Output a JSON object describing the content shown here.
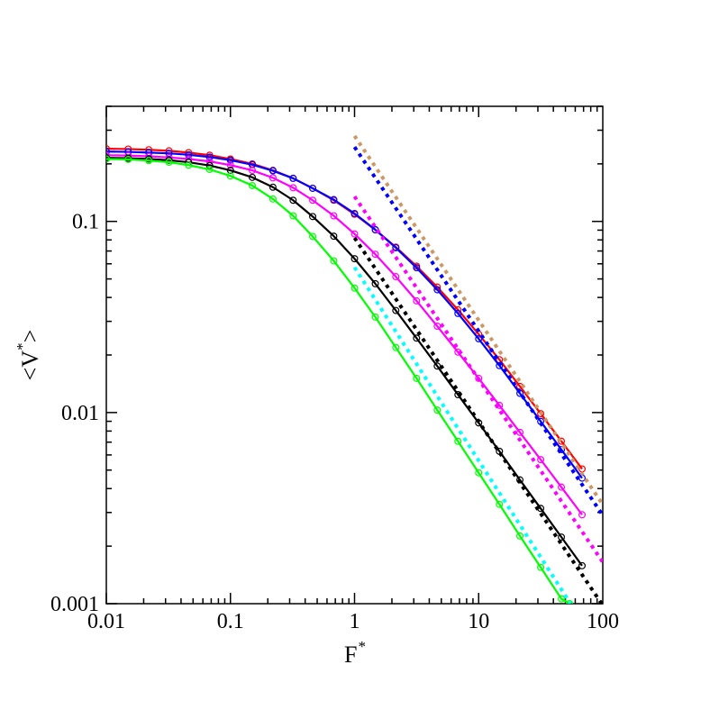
{
  "chart_data": {
    "type": "line",
    "x_scale": "log",
    "y_scale": "log",
    "xlim": [
      0.01,
      100
    ],
    "ylim": [
      0.001,
      0.4
    ],
    "xlabel": {
      "main": "F",
      "sup": "*"
    },
    "ylabel": {
      "left": "<V",
      "sup": "*",
      "right": ">"
    },
    "x_ticks": [
      {
        "value": 0.01,
        "label": "0.01"
      },
      {
        "value": 0.1,
        "label": "0.1"
      },
      {
        "value": 1,
        "label": "1"
      },
      {
        "value": 10,
        "label": "10"
      },
      {
        "value": 100,
        "label": "100"
      }
    ],
    "y_ticks": [
      {
        "value": 0.001,
        "label": "0.001"
      },
      {
        "value": 0.01,
        "label": "0.01"
      },
      {
        "value": 0.1,
        "label": "0.1"
      }
    ],
    "grid": false,
    "legend": "none",
    "series": [
      {
        "color": "#ff0000",
        "style": "solid",
        "markers": true,
        "x": [
          0.01,
          0.015,
          0.022,
          0.032,
          0.046,
          0.068,
          0.1,
          0.15,
          0.22,
          0.32,
          0.46,
          0.68,
          1.0,
          1.47,
          2.15,
          3.16,
          4.64,
          6.81,
          10.0,
          14.7,
          21.5,
          31.6,
          46.4,
          68.1
        ],
        "y": [
          0.24,
          0.239,
          0.237,
          0.234,
          0.229,
          0.222,
          0.212,
          0.2,
          0.185,
          0.168,
          0.149,
          0.129,
          0.109,
          0.0903,
          0.0734,
          0.0583,
          0.0453,
          0.0345,
          0.0257,
          0.0189,
          0.0137,
          0.00987,
          0.00708,
          0.00507
        ]
      },
      {
        "color": "#0000ff",
        "style": "solid",
        "markers": true,
        "x": [
          0.01,
          0.015,
          0.022,
          0.032,
          0.046,
          0.068,
          0.1,
          0.15,
          0.22,
          0.32,
          0.46,
          0.68,
          1.0,
          1.47,
          2.15,
          3.16,
          4.64,
          6.81,
          10.0,
          14.7,
          21.5,
          31.6,
          46.4,
          68.1
        ],
        "y": [
          0.232,
          0.231,
          0.229,
          0.227,
          0.223,
          0.217,
          0.209,
          0.198,
          0.184,
          0.168,
          0.149,
          0.13,
          0.11,
          0.0905,
          0.0728,
          0.0572,
          0.0439,
          0.033,
          0.0243,
          0.0176,
          0.0126,
          0.00899,
          0.0064,
          0.00454
        ]
      },
      {
        "color": "#ff00ff",
        "style": "solid",
        "markers": true,
        "x": [
          0.01,
          0.015,
          0.022,
          0.032,
          0.046,
          0.068,
          0.1,
          0.15,
          0.22,
          0.32,
          0.46,
          0.68,
          1.0,
          1.47,
          2.15,
          3.16,
          4.64,
          6.81,
          10.0,
          14.7,
          21.5,
          31.6,
          46.4,
          68.1
        ],
        "y": [
          0.222,
          0.221,
          0.219,
          0.216,
          0.212,
          0.206,
          0.197,
          0.185,
          0.169,
          0.15,
          0.129,
          0.107,
          0.086,
          0.0673,
          0.0514,
          0.0384,
          0.0283,
          0.0207,
          0.0151,
          0.0109,
          0.00787,
          0.00567,
          0.00407,
          0.00292
        ]
      },
      {
        "color": "#000000",
        "style": "solid",
        "markers": true,
        "x": [
          0.01,
          0.015,
          0.022,
          0.032,
          0.046,
          0.068,
          0.1,
          0.15,
          0.22,
          0.32,
          0.46,
          0.68,
          1.0,
          1.47,
          2.15,
          3.16,
          4.64,
          6.81,
          10.0,
          14.7,
          21.5,
          31.6,
          46.4,
          68.1
        ],
        "y": [
          0.215,
          0.214,
          0.212,
          0.209,
          0.204,
          0.196,
          0.185,
          0.17,
          0.151,
          0.129,
          0.106,
          0.0837,
          0.0638,
          0.0472,
          0.0342,
          0.0245,
          0.0175,
          0.0124,
          0.00883,
          0.00627,
          0.00444,
          0.00315,
          0.00223,
          0.00158
        ]
      },
      {
        "color": "#00ff00",
        "style": "solid",
        "markers": true,
        "x": [
          0.01,
          0.015,
          0.022,
          0.032,
          0.046,
          0.068,
          0.1,
          0.15,
          0.22,
          0.32,
          0.46,
          0.68,
          1.0,
          1.47,
          2.15,
          3.16,
          4.64,
          6.81,
          10.0,
          14.7,
          21.5,
          31.6,
          46.4,
          54.0
        ],
        "y": [
          0.212,
          0.211,
          0.208,
          0.204,
          0.197,
          0.187,
          0.173,
          0.154,
          0.131,
          0.107,
          0.0834,
          0.0622,
          0.0448,
          0.0316,
          0.0219,
          0.0151,
          0.0103,
          0.00707,
          0.00484,
          0.00331,
          0.00226,
          0.00155,
          0.00106,
          0.001
        ]
      },
      {
        "color": "#cc9966",
        "style": "dotted",
        "markers": false,
        "x": [
          1.0,
          100
        ],
        "y": [
          0.28,
          0.0033
        ]
      },
      {
        "color": "#0000ff",
        "style": "dotted",
        "markers": false,
        "x": [
          1.0,
          100
        ],
        "y": [
          0.245,
          0.0029
        ]
      },
      {
        "color": "#ff00ff",
        "style": "dotted",
        "markers": false,
        "x": [
          1.0,
          100
        ],
        "y": [
          0.135,
          0.00165
        ]
      },
      {
        "color": "#000000",
        "style": "dotted",
        "markers": false,
        "x": [
          1.0,
          100
        ],
        "y": [
          0.082,
          0.00098
        ]
      },
      {
        "color": "#00ffff",
        "style": "dotted",
        "markers": false,
        "x": [
          1.0,
          55
        ],
        "y": [
          0.0575,
          0.001
        ]
      }
    ]
  }
}
